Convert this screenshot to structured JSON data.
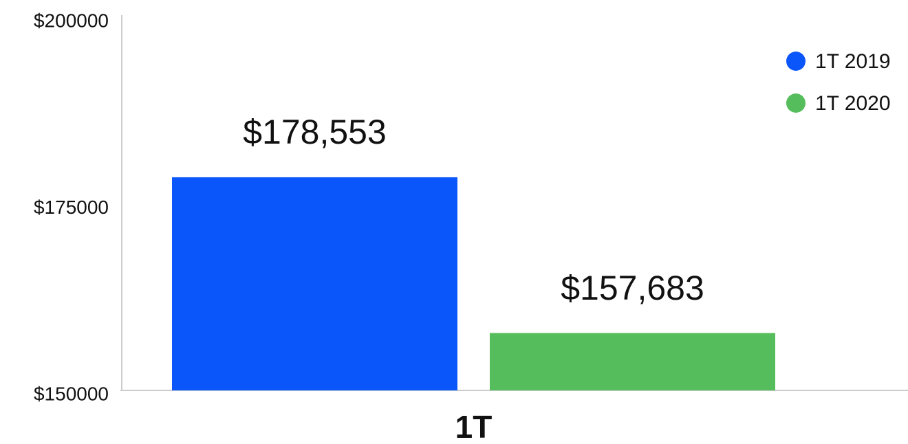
{
  "chart_data": {
    "type": "bar",
    "categories": [
      "1T"
    ],
    "series": [
      {
        "name": "1T 2019",
        "color": "#0a56fa",
        "values": [
          178553
        ],
        "value_labels": [
          "$178,553"
        ]
      },
      {
        "name": "1T 2020",
        "color": "#55bd5b",
        "values": [
          157683
        ],
        "value_labels": [
          "$157,683"
        ]
      }
    ],
    "ylim": [
      150000,
      200000
    ],
    "yticks": [
      {
        "value": 150000,
        "label": "$150000"
      },
      {
        "value": 175000,
        "label": "$175000"
      },
      {
        "value": 200000,
        "label": "$200000"
      }
    ],
    "grid": false,
    "legend": "upper right"
  }
}
